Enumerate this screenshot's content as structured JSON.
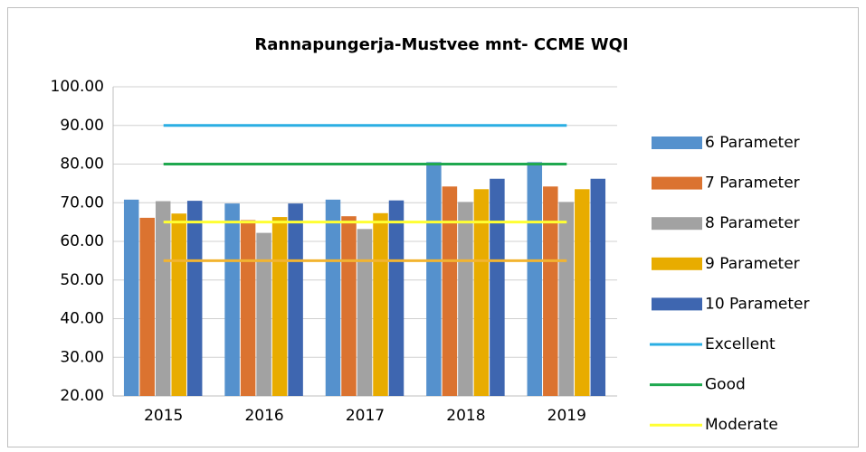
{
  "chart_data": {
    "type": "bar",
    "title": "Rannapungerja-Mustvee mnt- CCME WQI",
    "categories": [
      "2015",
      "2016",
      "2017",
      "2018",
      "2019"
    ],
    "series": [
      {
        "name": "6 Parameter",
        "color": "#5591cd",
        "values": [
          70.8,
          69.8,
          70.8,
          80.5,
          80.5
        ]
      },
      {
        "name": "7 Parameter",
        "color": "#db7330",
        "values": [
          66.1,
          65.5,
          66.5,
          74.2,
          74.2
        ]
      },
      {
        "name": "8 Parameter",
        "color": "#a2a2a2",
        "values": [
          70.4,
          62.2,
          63.2,
          70.2,
          70.2
        ]
      },
      {
        "name": "9 Parameter",
        "color": "#e8ac00",
        "values": [
          67.2,
          66.3,
          67.3,
          73.5,
          73.5
        ]
      },
      {
        "name": "10 Parameter",
        "color": "#3e66b0",
        "values": [
          70.5,
          69.8,
          70.6,
          76.2,
          76.2
        ]
      },
      {
        "name": "Excellent",
        "type": "line",
        "color": "#2aaee3",
        "values": [
          90,
          90,
          90,
          90,
          90
        ]
      },
      {
        "name": "Good",
        "type": "line",
        "color": "#1fa84f",
        "values": [
          80,
          80,
          80,
          80,
          80
        ]
      },
      {
        "name": "Moderate",
        "type": "line",
        "color": "#ffff33",
        "values": [
          65,
          65,
          65,
          65,
          65
        ]
      },
      {
        "type": "line",
        "color": "#f2b431",
        "values": [
          55,
          55,
          55,
          55,
          55
        ]
      }
    ],
    "ylim": [
      20,
      100
    ],
    "yticks": [
      {
        "value": 20,
        "label": "20.00"
      },
      {
        "value": 30,
        "label": "30.00"
      },
      {
        "value": 40,
        "label": "40.00"
      },
      {
        "value": 50,
        "label": "50.00"
      },
      {
        "value": 60,
        "label": "60.00"
      },
      {
        "value": 70,
        "label": "70.00"
      },
      {
        "value": 80,
        "label": "80.00"
      },
      {
        "value": 90,
        "label": "90.00"
      },
      {
        "value": 100,
        "label": "100.00"
      }
    ],
    "grid": true,
    "legend": "right"
  }
}
